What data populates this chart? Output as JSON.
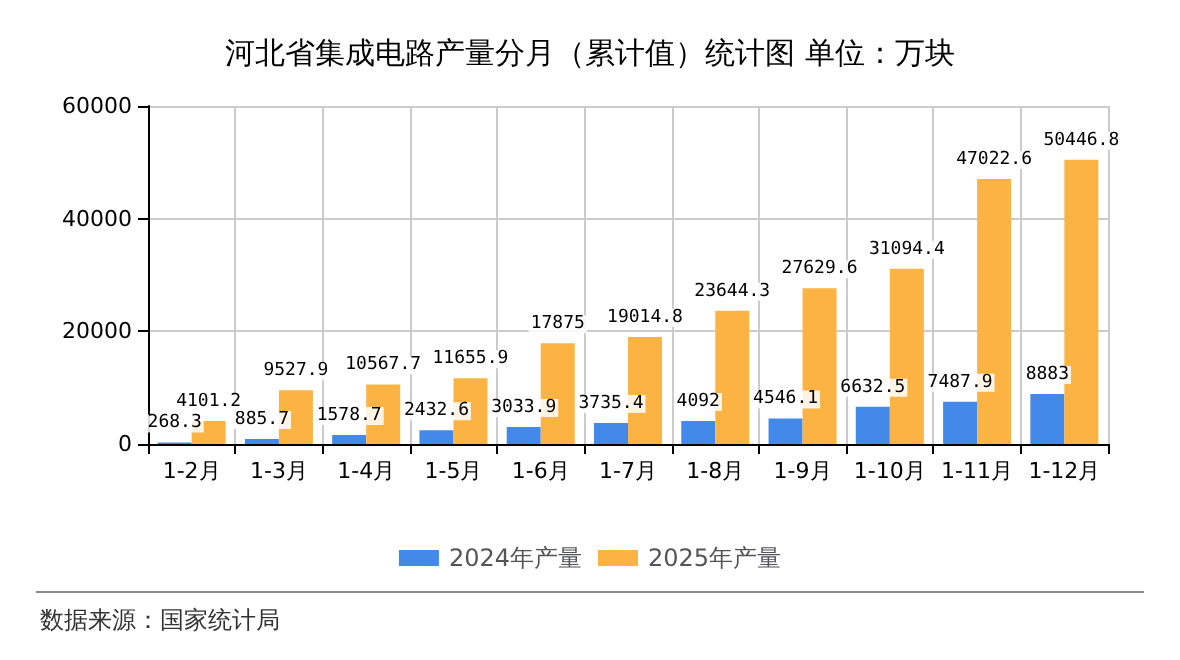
{
  "chart_data": {
    "type": "bar",
    "title": "河北省集成电路产量分月（累计值）统计图 单位：万块",
    "categories": [
      "1-2月",
      "1-3月",
      "1-4月",
      "1-5月",
      "1-6月",
      "1-7月",
      "1-8月",
      "1-9月",
      "1-10月",
      "1-11月",
      "1-12月"
    ],
    "series": [
      {
        "name": "2024年产量",
        "color": "#4389ea",
        "values": [
          268.3,
          885.7,
          1578.7,
          2432.6,
          3033.9,
          3735.4,
          4092,
          4546.1,
          6632.5,
          7487.9,
          8883
        ]
      },
      {
        "name": "2025年产量",
        "color": "#fbb444",
        "values": [
          4101.2,
          9527.9,
          10567.7,
          11655.9,
          17875,
          19014.8,
          23644.3,
          27629.6,
          31094.4,
          47022.6,
          50446.8
        ]
      }
    ],
    "ylim": [
      0,
      60000
    ],
    "yticks": [
      0,
      20000,
      40000,
      60000
    ],
    "grid": true,
    "legend": "bottom",
    "data_labels": true,
    "annotations": [
      "数据来源：国家统计局"
    ]
  }
}
